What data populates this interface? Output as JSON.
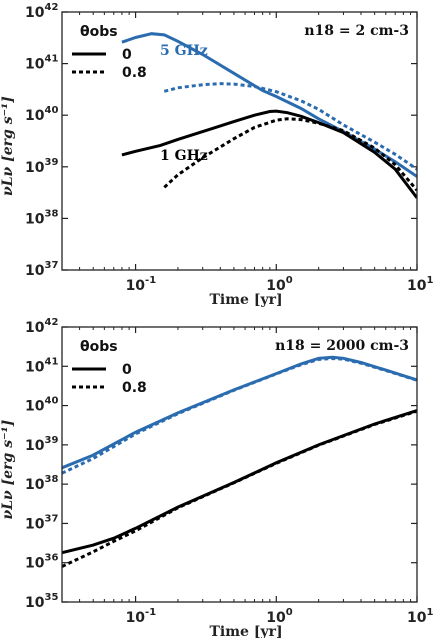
{
  "chart_data": [
    {
      "type": "line",
      "xscale": "log",
      "yscale": "log",
      "xlim": [
        0.03,
        10
      ],
      "ylim": [
        1e+37,
        1e+42
      ],
      "xlabel": "Time [yr]",
      "ylabel": "νLν [erg s⁻¹]",
      "x_ticks": [
        {
          "v": 0.1,
          "exp": "-1"
        },
        {
          "v": 1,
          "exp": "0"
        },
        {
          "v": 10,
          "exp": "1"
        }
      ],
      "y_ticks": [
        {
          "v": 1e+37,
          "exp": "37"
        },
        {
          "v": 1e+38,
          "exp": "38"
        },
        {
          "v": 1e+39,
          "exp": "39"
        },
        {
          "v": 1e+40,
          "exp": "40"
        },
        {
          "v": 1e+41,
          "exp": "41"
        },
        {
          "v": 1e+42,
          "exp": "42"
        }
      ],
      "legend": {
        "title": "θobs",
        "placement": "top-left",
        "entries": [
          "0",
          "0.8"
        ]
      },
      "annotation": "n18 = 2 cm-3",
      "series_labels": [
        {
          "text": "5 GHz",
          "color": "#2b6cb0"
        },
        {
          "text": "1 GHz",
          "color": "#000000"
        }
      ],
      "series": [
        {
          "freq": "5 GHz",
          "theta": "0",
          "color": "#2b6cb0",
          "style": "solid",
          "x": [
            0.08,
            0.1,
            0.13,
            0.16,
            0.2,
            0.3,
            0.5,
            0.8,
            1.0,
            1.5,
            2.0,
            3.0,
            5.0,
            7.0,
            10.0
          ],
          "y": [
            2.6e+41,
            3.2e+41,
            3.8e+41,
            3.6e+41,
            2.7e+41,
            1.5e+41,
            6.5e+40,
            3e+40,
            2.3e+40,
            1.35e+40,
            8.5e+39,
            4.8e+39,
            2.2e+39,
            1.25e+39,
            6.5e+38
          ]
        },
        {
          "freq": "5 GHz",
          "theta": "0.8",
          "color": "#2b6cb0",
          "style": "dotted",
          "x": [
            0.16,
            0.2,
            0.3,
            0.4,
            0.5,
            0.7,
            1.0,
            1.5,
            2.0,
            3.0,
            5.0,
            7.0,
            10.0
          ],
          "y": [
            2.9e+40,
            3.4e+40,
            3.9e+40,
            4.1e+40,
            4e+40,
            3.6e+40,
            2.85e+40,
            1.9e+40,
            1.3e+40,
            6.5e+39,
            3e+39,
            1.75e+39,
            9e+38
          ]
        },
        {
          "freq": "1 GHz",
          "theta": "0",
          "color": "#000000",
          "style": "solid",
          "x": [
            0.08,
            0.1,
            0.15,
            0.2,
            0.3,
            0.5,
            0.7,
            0.9,
            1.0,
            1.2,
            1.5,
            2.0,
            3.0,
            5.0,
            7.0,
            10.0
          ],
          "y": [
            1.7e+39,
            2e+39,
            2.6e+39,
            3.4e+39,
            4.8e+39,
            7.5e+39,
            1e+40,
            1.18e+40,
            1.2e+40,
            1.12e+40,
            9.5e+39,
            7.2e+39,
            4.6e+39,
            1.9e+39,
            9e+38,
            2.5e+38
          ]
        },
        {
          "freq": "1 GHz",
          "theta": "0.8",
          "color": "#000000",
          "style": "dotted",
          "x": [
            0.16,
            0.2,
            0.3,
            0.5,
            0.7,
            1.0,
            1.2,
            1.5,
            2.0,
            3.0,
            5.0,
            7.0,
            10.0
          ],
          "y": [
            4e+38,
            7e+38,
            1.5e+39,
            3.5e+39,
            5.8e+39,
            8e+39,
            8.5e+39,
            8.2e+39,
            7e+39,
            5e+39,
            2.3e+39,
            1.1e+39,
            3.5e+38
          ]
        }
      ]
    },
    {
      "type": "line",
      "xscale": "log",
      "yscale": "log",
      "xlim": [
        0.03,
        10
      ],
      "ylim": [
        1e+35,
        1e+42
      ],
      "xlabel": "Time [yr]",
      "ylabel": "νLν [erg s⁻¹]",
      "x_ticks": [
        {
          "v": 0.1,
          "exp": "-1"
        },
        {
          "v": 1,
          "exp": "0"
        },
        {
          "v": 10,
          "exp": "1"
        }
      ],
      "y_ticks": [
        {
          "v": 1e+35,
          "exp": "35"
        },
        {
          "v": 1e+36,
          "exp": "36"
        },
        {
          "v": 1e+37,
          "exp": "37"
        },
        {
          "v": 1e+38,
          "exp": "38"
        },
        {
          "v": 1e+39,
          "exp": "39"
        },
        {
          "v": 1e+40,
          "exp": "40"
        },
        {
          "v": 1e+41,
          "exp": "41"
        },
        {
          "v": 1e+42,
          "exp": "42"
        }
      ],
      "legend": {
        "title": "θobs",
        "placement": "top-left",
        "entries": [
          "0",
          "0.8"
        ]
      },
      "annotation": "n18 = 2000 cm-3",
      "series_labels": [],
      "series": [
        {
          "freq": "5 GHz",
          "theta": "0",
          "color": "#2b6cb0",
          "style": "solid",
          "x": [
            0.03,
            0.05,
            0.1,
            0.2,
            0.5,
            1.0,
            1.5,
            2.0,
            2.5,
            3.0,
            4.0,
            6.0,
            10.0
          ],
          "y": [
            2.6e+38,
            5.5e+38,
            2.1e+39,
            6.5e+39,
            2.5e+40,
            6.5e+40,
            1.15e+41,
            1.6e+41,
            1.7e+41,
            1.6e+41,
            1.25e+41,
            8e+40,
            4.5e+40
          ]
        },
        {
          "freq": "5 GHz",
          "theta": "0.8",
          "color": "#2b6cb0",
          "style": "dotted",
          "x": [
            0.03,
            0.05,
            0.1,
            0.2,
            0.5,
            1.0,
            1.5,
            2.0,
            2.5,
            3.0,
            4.0,
            6.0,
            10.0
          ],
          "y": [
            1.9e+38,
            4.5e+38,
            1.9e+39,
            6.2e+39,
            2.45e+40,
            6.4e+40,
            1.1e+41,
            1.5e+41,
            1.58e+41,
            1.52e+41,
            1.2e+41,
            7.8e+40,
            4.4e+40
          ]
        },
        {
          "freq": "1 GHz",
          "theta": "0",
          "color": "#000000",
          "style": "solid",
          "x": [
            0.03,
            0.05,
            0.07,
            0.1,
            0.2,
            0.5,
            1.0,
            2.0,
            5.0,
            10.0
          ],
          "y": [
            1.8e+36,
            2.8e+36,
            4.2e+36,
            7.5e+36,
            2.6e+37,
            1.1e+38,
            3.5e+38,
            1e+39,
            3.4e+39,
            7.5e+39
          ]
        },
        {
          "freq": "1 GHz",
          "theta": "0.8",
          "color": "#000000",
          "style": "dotted",
          "x": [
            0.03,
            0.05,
            0.07,
            0.1,
            0.2,
            0.5,
            1.0,
            2.0,
            5.0,
            10.0
          ],
          "y": [
            8e+35,
            1.9e+36,
            3.5e+36,
            6.5e+36,
            2.5e+37,
            1.08e+38,
            3.4e+38,
            9.8e+38,
            3.3e+39,
            7.2e+39
          ]
        }
      ]
    }
  ]
}
